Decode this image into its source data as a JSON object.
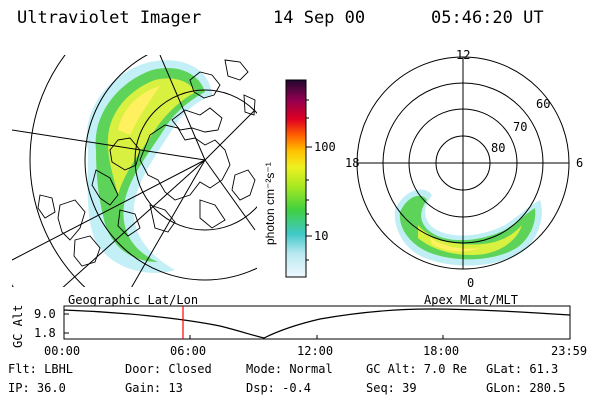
{
  "header": {
    "instrument": "Ultraviolet Imager",
    "date": "14 Sep 00",
    "time": "05:46:20 UT"
  },
  "colorbar": {
    "unit_label": "photon cm⁻²s⁻¹",
    "ticks": [
      "100",
      "10"
    ],
    "scale": "log"
  },
  "geo_panel": {
    "label": "Geographic Lat/Lon"
  },
  "polar_panel": {
    "label": "Apex  MLat/MLT",
    "mlt_labels": [
      "12",
      "18",
      "6",
      "0"
    ],
    "lat_labels": [
      "60",
      "70",
      "80"
    ]
  },
  "altitude_plot": {
    "ylabel": "GC Alt",
    "yticks": [
      "9.0",
      "1.8"
    ],
    "xticks": [
      "00:00",
      "06:00",
      "12:00",
      "18:00",
      "23:59"
    ],
    "marker_time": "05:46",
    "marker_color": "#ff0000"
  },
  "info": {
    "flt": "Flt: LBHL",
    "ip": "IP: 36.0",
    "door": "Door: Closed",
    "gain": "Gain: 13",
    "mode": "Mode: Normal",
    "dsp": "Dsp:   -0.4",
    "gc_alt": "GC Alt: 7.0 Re",
    "seq": "Seq: 39",
    "glat": "GLat:  61.3",
    "glon": "GLon: 280.5"
  },
  "colors": {
    "colorbar_stops": [
      "#e8f4ff",
      "#40c8c8",
      "#40d040",
      "#c8f020",
      "#ffe000",
      "#ffa000",
      "#ff3000",
      "#d00020",
      "#8a0050",
      "#301040"
    ]
  }
}
